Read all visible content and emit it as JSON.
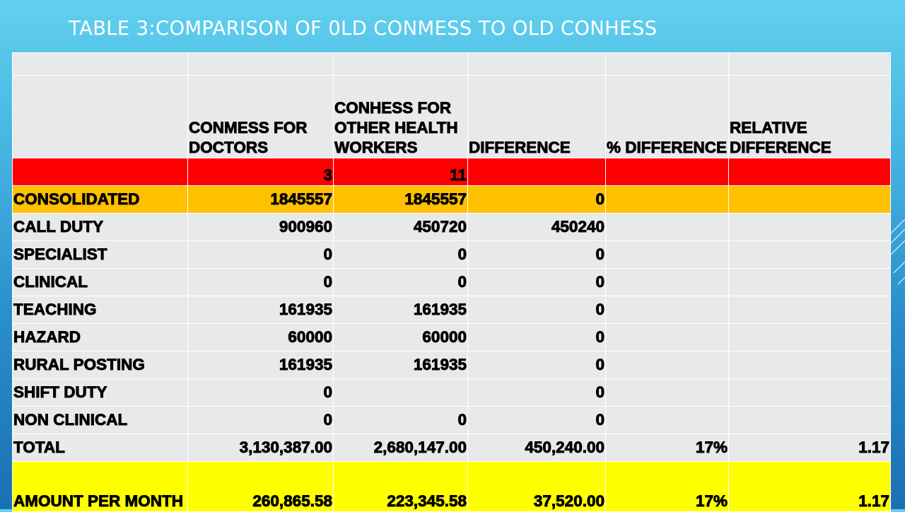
{
  "slide": {
    "title": "TABLE 3:COMPARISON OF 0LD CONMESS TO OLD CONHESS"
  },
  "colors": {
    "header_row": "#ff0000",
    "consolidated_row": "#ffc000",
    "amount_row": "#ffff00",
    "cell_bg": "#e8e9eb",
    "title_text": "#ffffff"
  },
  "table": {
    "headers": [
      "",
      "CONMESS FOR DOCTORS",
      "CONHESS FOR OTHER HEALTH WORKERS",
      "DIFFERENCE",
      "% DIFFERENCE",
      "RELATIVE DIFFERENCE"
    ],
    "grade_row": [
      "",
      "3",
      "11",
      "",
      "",
      ""
    ],
    "rows": [
      {
        "label": "CONSOLIDATED",
        "cells": [
          "1845557",
          "1845557",
          "0",
          "",
          ""
        ]
      },
      {
        "label": "CALL DUTY",
        "cells": [
          "900960",
          "450720",
          "450240",
          "",
          ""
        ]
      },
      {
        "label": "SPECIALIST",
        "cells": [
          "0",
          "0",
          "0",
          "",
          ""
        ]
      },
      {
        "label": "CLINICAL",
        "cells": [
          "0",
          "0",
          "0",
          "",
          ""
        ]
      },
      {
        "label": "TEACHING",
        "cells": [
          "161935",
          "161935",
          "0",
          "",
          ""
        ]
      },
      {
        "label": "HAZARD",
        "cells": [
          "60000",
          "60000",
          "0",
          "",
          ""
        ]
      },
      {
        "label": "RURAL POSTING",
        "cells": [
          "161935",
          "161935",
          "0",
          "",
          ""
        ]
      },
      {
        "label": "SHIFT DUTY",
        "cells": [
          "0",
          "",
          "0",
          "",
          ""
        ]
      },
      {
        "label": "NON CLINICAL",
        "cells": [
          "0",
          "0",
          "0",
          "",
          ""
        ]
      },
      {
        "label": "TOTAL",
        "cells": [
          "3,130,387.00",
          "2,680,147.00",
          "450,240.00",
          "17%",
          "1.17"
        ]
      },
      {
        "label": "AMOUNT PER MONTH",
        "cells": [
          "260,865.58",
          "223,345.58",
          "37,520.00",
          "17%",
          "1.17"
        ]
      }
    ]
  }
}
